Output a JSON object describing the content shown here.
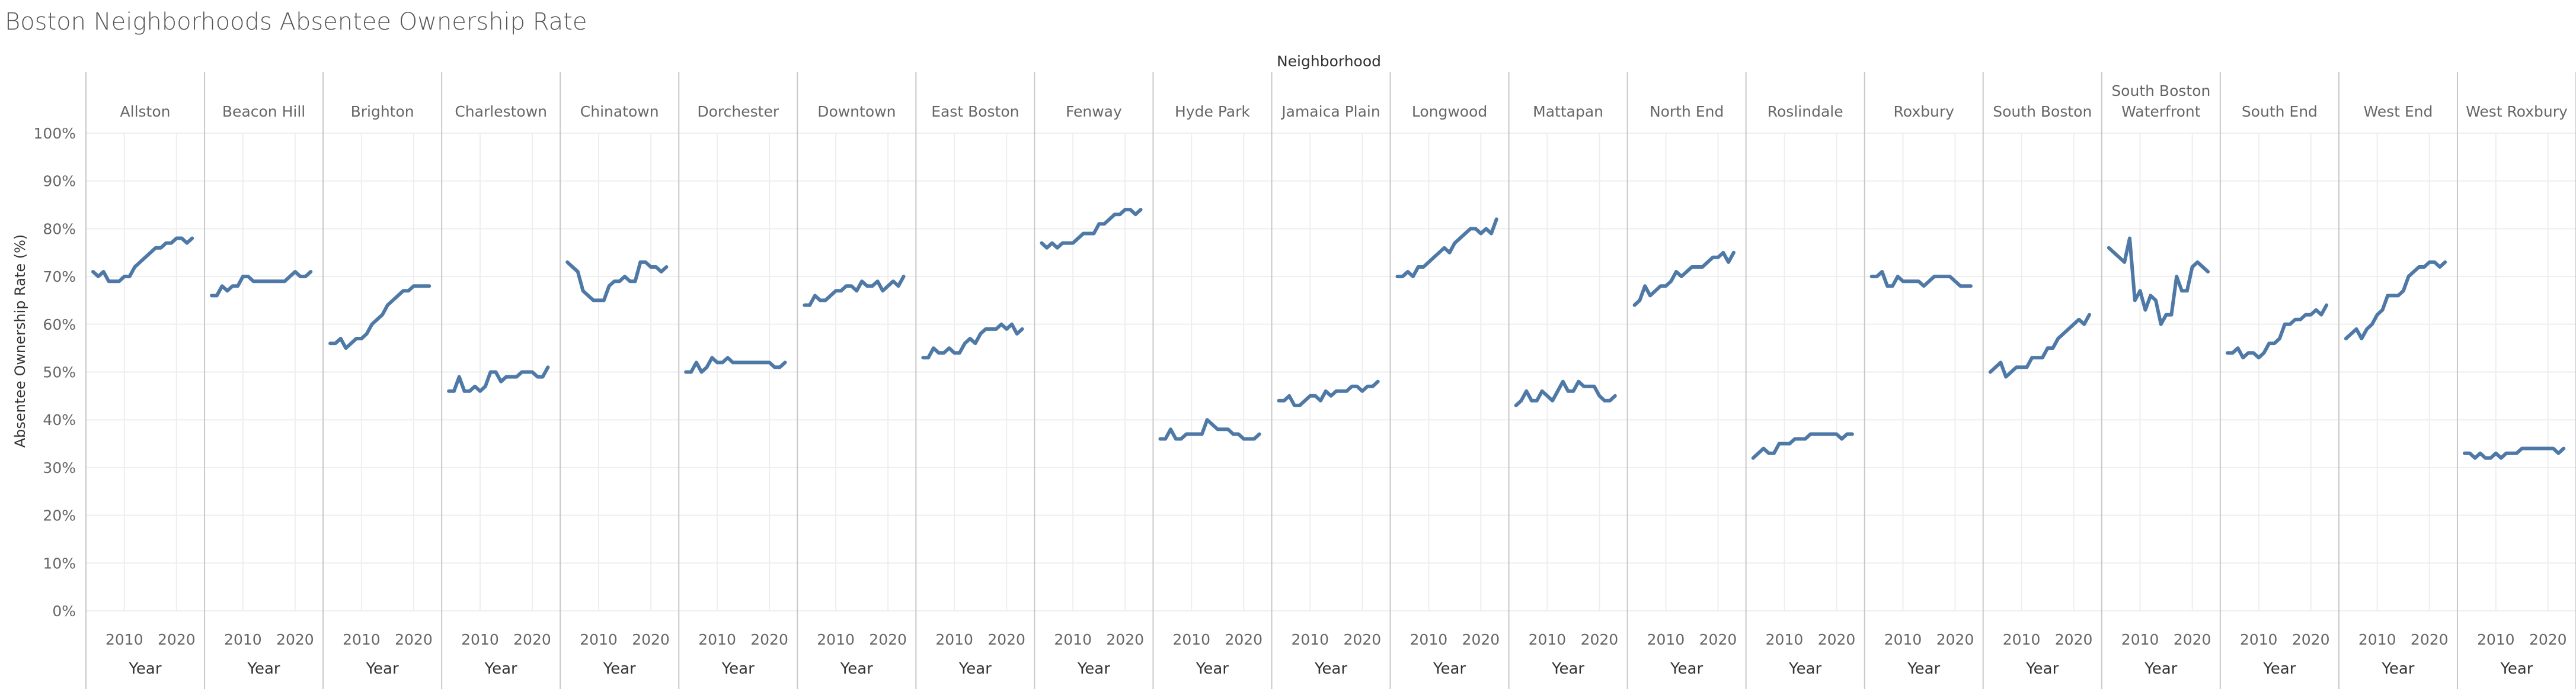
{
  "title": "Boston Neighborhoods Absentee Ownership Rate",
  "colors": {
    "line": "#4e79a7",
    "grid": "#eeeeee",
    "divider": "#c8c8c8",
    "text": "#666666",
    "header": "#333333"
  },
  "chart_data": {
    "type": "line",
    "title": "Boston Neighborhoods Absentee Ownership Rate",
    "column_header": "Neighborhood",
    "xlabel": "Year",
    "ylabel": "Absentee Ownership Rate (%)",
    "ylim": [
      0,
      100
    ],
    "yticks": [
      "100%",
      "90%",
      "80%",
      "70%",
      "60%",
      "50%",
      "40%",
      "30%",
      "20%",
      "10%",
      "0%"
    ],
    "xlim": [
      2004,
      2024
    ],
    "xticks": [
      "2010",
      "2020"
    ],
    "grid": true,
    "x": [
      2004,
      2005,
      2006,
      2007,
      2008,
      2009,
      2010,
      2011,
      2012,
      2013,
      2014,
      2015,
      2016,
      2017,
      2018,
      2019,
      2020,
      2021,
      2022,
      2023
    ],
    "panels": [
      {
        "name": "Allston",
        "values": [
          71,
          70,
          71,
          69,
          69,
          69,
          70,
          70,
          72,
          73,
          74,
          75,
          76,
          76,
          77,
          77,
          78,
          78,
          77,
          78
        ]
      },
      {
        "name": "Beacon Hill",
        "values": [
          66,
          66,
          68,
          67,
          68,
          68,
          70,
          70,
          69,
          69,
          69,
          69,
          69,
          69,
          69,
          70,
          71,
          70,
          70,
          71
        ]
      },
      {
        "name": "Brighton",
        "values": [
          56,
          56,
          57,
          55,
          56,
          57,
          57,
          58,
          60,
          61,
          62,
          64,
          65,
          66,
          67,
          67,
          68,
          68,
          68,
          68
        ]
      },
      {
        "name": "Charlestown",
        "values": [
          46,
          46,
          49,
          46,
          46,
          47,
          46,
          47,
          50,
          50,
          48,
          49,
          49,
          49,
          50,
          50,
          50,
          49,
          49,
          51
        ]
      },
      {
        "name": "Chinatown",
        "values": [
          73,
          72,
          71,
          67,
          66,
          65,
          65,
          65,
          68,
          69,
          69,
          70,
          69,
          69,
          73,
          73,
          72,
          72,
          71,
          72
        ]
      },
      {
        "name": "Dorchester",
        "values": [
          50,
          50,
          52,
          50,
          51,
          53,
          52,
          52,
          53,
          52,
          52,
          52,
          52,
          52,
          52,
          52,
          52,
          51,
          51,
          52
        ]
      },
      {
        "name": "Downtown",
        "values": [
          64,
          64,
          66,
          65,
          65,
          66,
          67,
          67,
          68,
          68,
          67,
          69,
          68,
          68,
          69,
          67,
          68,
          69,
          68,
          70
        ]
      },
      {
        "name": "East Boston",
        "values": [
          53,
          53,
          55,
          54,
          54,
          55,
          54,
          54,
          56,
          57,
          56,
          58,
          59,
          59,
          59,
          60,
          59,
          60,
          58,
          59
        ]
      },
      {
        "name": "Fenway",
        "values": [
          77,
          76,
          77,
          76,
          77,
          77,
          77,
          78,
          79,
          79,
          79,
          81,
          81,
          82,
          83,
          83,
          84,
          84,
          83,
          84
        ]
      },
      {
        "name": "Hyde Park",
        "values": [
          36,
          36,
          38,
          36,
          36,
          37,
          37,
          37,
          37,
          40,
          39,
          38,
          38,
          38,
          37,
          37,
          36,
          36,
          36,
          37
        ]
      },
      {
        "name": "Jamaica Plain",
        "values": [
          44,
          44,
          45,
          43,
          43,
          44,
          45,
          45,
          44,
          46,
          45,
          46,
          46,
          46,
          47,
          47,
          46,
          47,
          47,
          48
        ]
      },
      {
        "name": "Longwood",
        "values": [
          70,
          70,
          71,
          70,
          72,
          72,
          73,
          74,
          75,
          76,
          75,
          77,
          78,
          79,
          80,
          80,
          79,
          80,
          79,
          82
        ]
      },
      {
        "name": "Mattapan",
        "values": [
          43,
          44,
          46,
          44,
          44,
          46,
          45,
          44,
          46,
          48,
          46,
          46,
          48,
          47,
          47,
          47,
          45,
          44,
          44,
          45
        ]
      },
      {
        "name": "North End",
        "values": [
          64,
          65,
          68,
          66,
          67,
          68,
          68,
          69,
          71,
          70,
          71,
          72,
          72,
          72,
          73,
          74,
          74,
          75,
          73,
          75
        ]
      },
      {
        "name": "Roslindale",
        "values": [
          32,
          33,
          34,
          33,
          33,
          35,
          35,
          35,
          36,
          36,
          36,
          37,
          37,
          37,
          37,
          37,
          37,
          36,
          37,
          37
        ]
      },
      {
        "name": "Roxbury",
        "values": [
          70,
          70,
          71,
          68,
          68,
          70,
          69,
          69,
          69,
          69,
          68,
          69,
          70,
          70,
          70,
          70,
          69,
          68,
          68,
          68
        ]
      },
      {
        "name": "South Boston",
        "values": [
          50,
          51,
          52,
          49,
          50,
          51,
          51,
          51,
          53,
          53,
          53,
          55,
          55,
          57,
          58,
          59,
          60,
          61,
          60,
          62
        ]
      },
      {
        "name": "South Boston Waterfront",
        "values": [
          76,
          75,
          74,
          73,
          78,
          65,
          67,
          63,
          66,
          65,
          60,
          62,
          62,
          70,
          67,
          67,
          72,
          73,
          72,
          71
        ]
      },
      {
        "name": "South End",
        "values": [
          54,
          54,
          55,
          53,
          54,
          54,
          53,
          54,
          56,
          56,
          57,
          60,
          60,
          61,
          61,
          62,
          62,
          63,
          62,
          64
        ]
      },
      {
        "name": "West End",
        "values": [
          57,
          58,
          59,
          57,
          59,
          60,
          62,
          63,
          66,
          66,
          66,
          67,
          70,
          71,
          72,
          72,
          73,
          73,
          72,
          73
        ]
      },
      {
        "name": "West Roxbury",
        "values": [
          33,
          33,
          32,
          33,
          32,
          32,
          33,
          32,
          33,
          33,
          33,
          34,
          34,
          34,
          34,
          34,
          34,
          34,
          33,
          34
        ]
      }
    ]
  }
}
